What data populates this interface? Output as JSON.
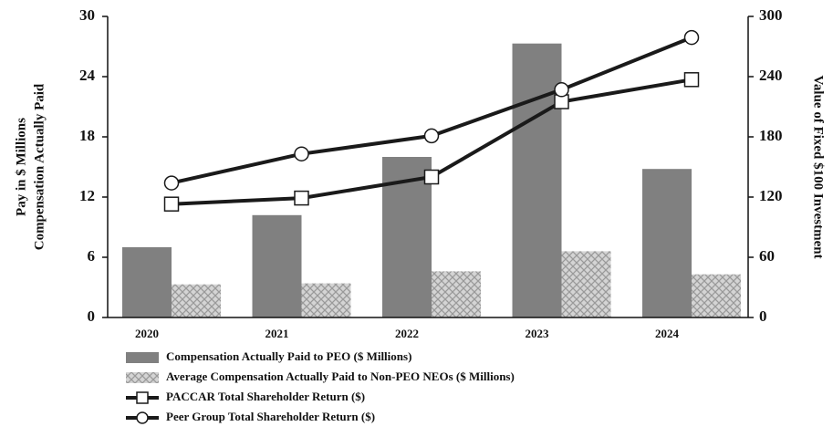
{
  "chart_data": {
    "type": "bar",
    "ylabel": [
      "Pay in $ Millions",
      "Compensation Actually Paid"
    ],
    "y2label": "Value of Fixed $100 Investment",
    "categories": [
      "2020",
      "2021",
      "2022",
      "2023",
      "2024"
    ],
    "series": [
      {
        "name": "Compensation Actually Paid to PEO ($ Millions)",
        "type": "bar",
        "color": "#808080",
        "values": [
          7.0,
          10.2,
          16.0,
          27.3,
          14.8
        ]
      },
      {
        "name": "Average Compensation Actually Paid to Non-PEO NEOs ($ Millions)",
        "type": "bar",
        "color": "#c8c8c8",
        "hatch": true,
        "values": [
          3.3,
          3.4,
          4.6,
          6.6,
          4.3
        ]
      },
      {
        "name": "PACCAR Total Shareholder Return ($)",
        "type": "line",
        "axis": "y2",
        "marker": "square",
        "color": "#1a1a1a",
        "values": [
          113,
          119,
          140,
          215,
          237
        ]
      },
      {
        "name": "Peer Group Total Shareholder Return ($)",
        "type": "line",
        "axis": "y2",
        "marker": "circle",
        "color": "#1a1a1a",
        "values": [
          134,
          163,
          181,
          227,
          279
        ]
      }
    ],
    "ylim": [
      0,
      30
    ],
    "yticks": [
      0,
      6,
      12,
      18,
      24,
      30
    ],
    "y2lim": [
      0,
      300
    ],
    "y2ticks": [
      0,
      60,
      120,
      180,
      240,
      300
    ],
    "grid": false
  }
}
